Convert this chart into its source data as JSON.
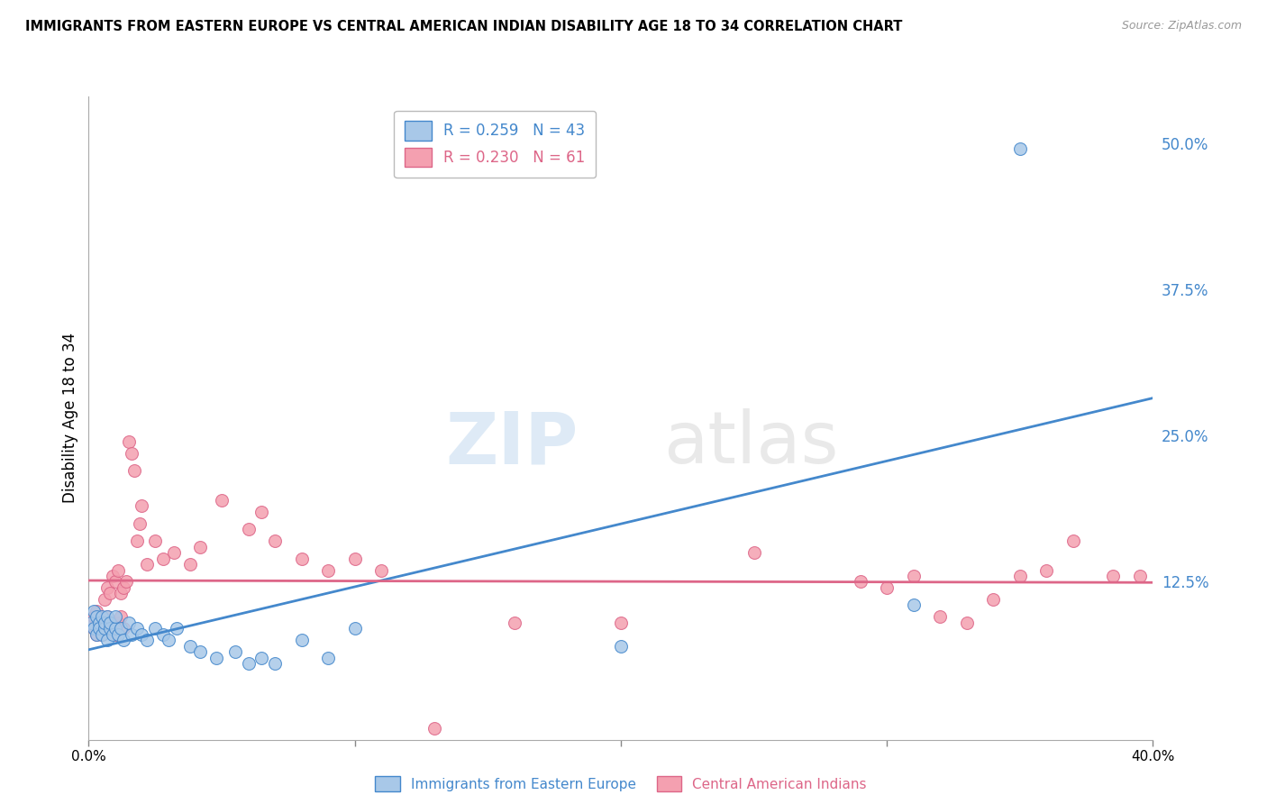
{
  "title": "IMMIGRANTS FROM EASTERN EUROPE VS CENTRAL AMERICAN INDIAN DISABILITY AGE 18 TO 34 CORRELATION CHART",
  "source": "Source: ZipAtlas.com",
  "ylabel": "Disability Age 18 to 34",
  "right_yticks": [
    0.0,
    0.125,
    0.25,
    0.375,
    0.5
  ],
  "right_yticklabels": [
    "",
    "12.5%",
    "25.0%",
    "37.5%",
    "50.0%"
  ],
  "xlim": [
    0.0,
    0.4
  ],
  "ylim": [
    -0.01,
    0.54
  ],
  "blue_R": 0.259,
  "blue_N": 43,
  "pink_R": 0.23,
  "pink_N": 61,
  "blue_color": "#a8c8e8",
  "pink_color": "#f4a0b0",
  "line_blue": "#4488cc",
  "line_pink": "#dd6688",
  "legend_label_blue": "Immigrants from Eastern Europe",
  "legend_label_pink": "Central American Indians",
  "watermark_zip": "ZIP",
  "watermark_atlas": "atlas",
  "blue_x": [
    0.001,
    0.002,
    0.002,
    0.003,
    0.003,
    0.004,
    0.004,
    0.005,
    0.005,
    0.006,
    0.006,
    0.007,
    0.007,
    0.008,
    0.008,
    0.009,
    0.01,
    0.01,
    0.011,
    0.012,
    0.013,
    0.015,
    0.016,
    0.018,
    0.02,
    0.022,
    0.025,
    0.028,
    0.03,
    0.033,
    0.038,
    0.042,
    0.048,
    0.055,
    0.06,
    0.065,
    0.07,
    0.08,
    0.09,
    0.1,
    0.2,
    0.31,
    0.35
  ],
  "blue_y": [
    0.09,
    0.085,
    0.1,
    0.095,
    0.08,
    0.09,
    0.085,
    0.095,
    0.08,
    0.085,
    0.09,
    0.075,
    0.095,
    0.085,
    0.09,
    0.08,
    0.085,
    0.095,
    0.08,
    0.085,
    0.075,
    0.09,
    0.08,
    0.085,
    0.08,
    0.075,
    0.085,
    0.08,
    0.075,
    0.085,
    0.07,
    0.065,
    0.06,
    0.065,
    0.055,
    0.06,
    0.055,
    0.075,
    0.06,
    0.085,
    0.07,
    0.105,
    0.495
  ],
  "pink_x": [
    0.001,
    0.002,
    0.002,
    0.003,
    0.003,
    0.004,
    0.004,
    0.005,
    0.005,
    0.006,
    0.006,
    0.007,
    0.007,
    0.008,
    0.008,
    0.009,
    0.009,
    0.01,
    0.01,
    0.011,
    0.011,
    0.012,
    0.012,
    0.013,
    0.013,
    0.014,
    0.015,
    0.016,
    0.017,
    0.018,
    0.019,
    0.02,
    0.022,
    0.025,
    0.028,
    0.032,
    0.038,
    0.042,
    0.05,
    0.06,
    0.065,
    0.07,
    0.08,
    0.09,
    0.1,
    0.11,
    0.13,
    0.16,
    0.2,
    0.25,
    0.29,
    0.3,
    0.31,
    0.32,
    0.33,
    0.34,
    0.35,
    0.36,
    0.37,
    0.385,
    0.395
  ],
  "pink_y": [
    0.09,
    0.095,
    0.085,
    0.1,
    0.08,
    0.095,
    0.085,
    0.09,
    0.08,
    0.11,
    0.085,
    0.12,
    0.095,
    0.115,
    0.09,
    0.13,
    0.085,
    0.125,
    0.08,
    0.135,
    0.09,
    0.115,
    0.095,
    0.12,
    0.085,
    0.125,
    0.245,
    0.235,
    0.22,
    0.16,
    0.175,
    0.19,
    0.14,
    0.16,
    0.145,
    0.15,
    0.14,
    0.155,
    0.195,
    0.17,
    0.185,
    0.16,
    0.145,
    0.135,
    0.145,
    0.135,
    0.0,
    0.09,
    0.09,
    0.15,
    0.125,
    0.12,
    0.13,
    0.095,
    0.09,
    0.11,
    0.13,
    0.135,
    0.16,
    0.13,
    0.13
  ]
}
